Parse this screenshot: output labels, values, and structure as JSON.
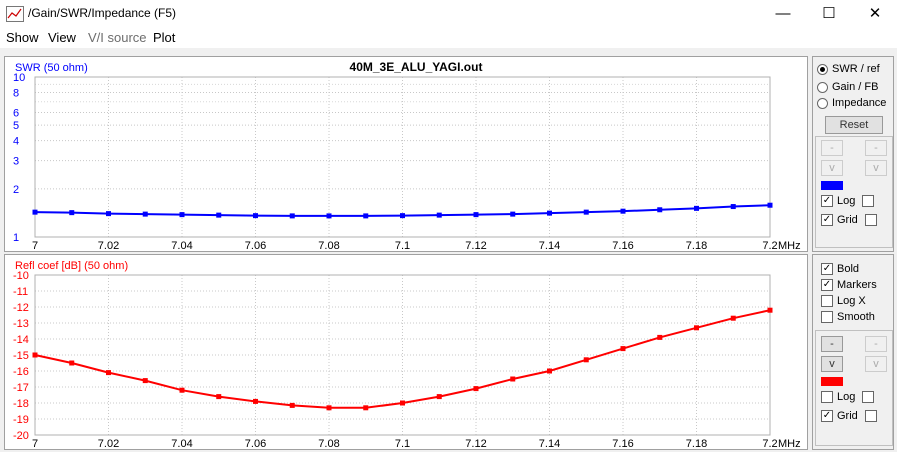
{
  "window": {
    "title": "/Gain/SWR/Impedance (F5)",
    "min": "—",
    "max": "☐",
    "close": "✕"
  },
  "menu": [
    "Show",
    "View",
    "V/I source",
    "Plot"
  ],
  "top_plot": {
    "ylabel": "SWR (50 ohm)",
    "title": "40M_3E_ALU_YAGI.out",
    "yticks": [
      "10",
      "8",
      "6",
      "5",
      "4",
      "3",
      "2",
      "1"
    ],
    "color": "#0000ff"
  },
  "bottom_plot": {
    "ylabel": "Refl coef [dB] (50 ohm)",
    "yticks": [
      "-10",
      "-11",
      "-12",
      "-13",
      "-14",
      "-15",
      "-16",
      "-17",
      "-18",
      "-19",
      "-20"
    ],
    "color": "#ff0000"
  },
  "xticks": [
    "7",
    "7.02",
    "7.04",
    "7.06",
    "7.08",
    "7.1",
    "7.12",
    "7.14",
    "7.16",
    "7.18",
    "7.2"
  ],
  "x_unit": "MHz",
  "side_top": {
    "radios": [
      "SWR / ref",
      "Gain / FB",
      "Impedance"
    ],
    "reset": "Reset",
    "minus": "-",
    "v": "v",
    "log": "Log",
    "grid": "Grid",
    "swatch": "#0000ff"
  },
  "side_bottom": {
    "checks": [
      "Bold",
      "Markers",
      "Log X",
      "Smooth"
    ],
    "minus": "-",
    "v": "v",
    "log": "Log",
    "grid": "Grid",
    "swatch": "#ff0000"
  },
  "chart_data": [
    {
      "type": "line",
      "title": "40M_3E_ALU_YAGI.out",
      "ylabel": "SWR (50 ohm)",
      "xlabel": "MHz",
      "y_scale": "log",
      "ylim": [
        1,
        10
      ],
      "xlim": [
        7.0,
        7.2
      ],
      "grid": true,
      "series": [
        {
          "x": [
            7.0,
            7.01,
            7.02,
            7.03,
            7.04,
            7.05,
            7.06,
            7.07,
            7.08,
            7.09,
            7.1,
            7.11,
            7.12,
            7.13,
            7.14,
            7.15,
            7.16,
            7.17,
            7.18,
            7.19,
            7.2
          ],
          "values": [
            1.43,
            1.42,
            1.4,
            1.39,
            1.38,
            1.37,
            1.36,
            1.355,
            1.355,
            1.355,
            1.36,
            1.37,
            1.38,
            1.39,
            1.41,
            1.43,
            1.45,
            1.48,
            1.51,
            1.55,
            1.58
          ]
        }
      ]
    },
    {
      "type": "line",
      "ylabel": "Refl coef [dB] (50 ohm)",
      "xlabel": "MHz",
      "ylim": [
        -20,
        -10
      ],
      "xlim": [
        7.0,
        7.2
      ],
      "grid": true,
      "series": [
        {
          "x": [
            7.0,
            7.01,
            7.02,
            7.03,
            7.04,
            7.05,
            7.06,
            7.07,
            7.08,
            7.09,
            7.1,
            7.11,
            7.12,
            7.13,
            7.14,
            7.15,
            7.16,
            7.17,
            7.18,
            7.19,
            7.2
          ],
          "values": [
            -15.0,
            -15.5,
            -16.1,
            -16.6,
            -17.2,
            -17.6,
            -17.9,
            -18.15,
            -18.3,
            -18.3,
            -18.0,
            -17.6,
            -17.1,
            -16.5,
            -16.0,
            -15.3,
            -14.6,
            -13.9,
            -13.3,
            -12.7,
            -12.2
          ]
        }
      ]
    }
  ]
}
